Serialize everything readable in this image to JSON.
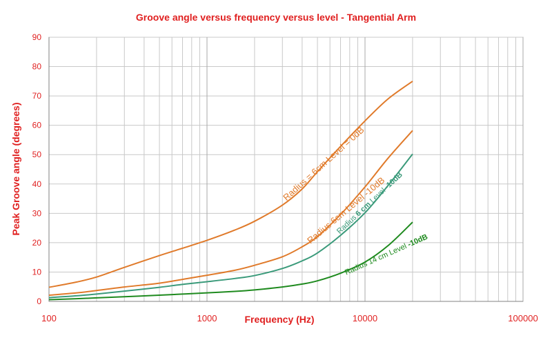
{
  "chart_data": {
    "type": "line",
    "title": "Groove angle versus frequency versus level - Tangential Arm",
    "xlabel": "Frequency (Hz)",
    "ylabel": "Peak Groove angle (degrees)",
    "xscale": "log",
    "xlim": [
      100,
      100000
    ],
    "ylim": [
      0,
      90
    ],
    "xticks": [
      "100",
      "1000",
      "10000",
      "100000"
    ],
    "yticks": [
      "0",
      "10",
      "20",
      "30",
      "40",
      "50",
      "60",
      "70",
      "80",
      "90"
    ],
    "grid": true,
    "legend": "none",
    "colors": {
      "text": "#e02020",
      "orange": "#e07a2a",
      "teal": "#3a9a7a",
      "green": "#1e8a1e",
      "grid": "#c8c8c8"
    },
    "series": [
      {
        "label_parts": [
          {
            "text": "Radius = 6cm  Level = 0dB",
            "bold": false
          }
        ],
        "color": "#e07a2a",
        "x": [
          100,
          150,
          200,
          300,
          500,
          700,
          1000,
          1500,
          2000,
          3000,
          4000,
          5000,
          7000,
          10000,
          14000,
          20000
        ],
        "y": [
          4.8,
          6.6,
          8.3,
          11.6,
          15.6,
          18.1,
          20.8,
          24.3,
          27.3,
          32.8,
          38.3,
          44.2,
          52.8,
          61.5,
          69.0,
          75.0
        ]
      },
      {
        "label_parts": [
          {
            "text": "Radius 6cm  Level -10dB",
            "bold": false
          }
        ],
        "color": "#e07a2a",
        "x": [
          100,
          150,
          200,
          300,
          500,
          700,
          1000,
          1500,
          2000,
          3000,
          4000,
          5000,
          7000,
          10000,
          14000,
          20000
        ],
        "y": [
          2.1,
          2.9,
          3.7,
          4.9,
          6.2,
          7.5,
          8.9,
          10.6,
          12.3,
          15.2,
          18.6,
          22.1,
          29.6,
          39.0,
          48.8,
          58.2
        ]
      },
      {
        "label_parts": [
          {
            "text": "Radius ",
            "bold": false
          },
          {
            "text": "6 cm",
            "bold": true
          },
          {
            "text": " Level ",
            "bold": false
          },
          {
            "text": "-10dB",
            "bold": true
          }
        ],
        "color": "#3a9a7a",
        "x": [
          100,
          150,
          200,
          300,
          500,
          700,
          1000,
          1500,
          2000,
          3000,
          4000,
          5000,
          7000,
          10000,
          14000,
          20000
        ],
        "y": [
          1.3,
          1.9,
          2.5,
          3.5,
          4.8,
          5.8,
          6.7,
          7.8,
          8.8,
          11.2,
          13.8,
          16.5,
          22.5,
          30.2,
          39.5,
          50.2
        ]
      },
      {
        "label_parts": [
          {
            "text": "Radius 14 cm  Level ",
            "bold": false
          },
          {
            "text": "-10dB",
            "bold": true
          }
        ],
        "color": "#1e8a1e",
        "x": [
          100,
          150,
          200,
          300,
          500,
          700,
          1000,
          1500,
          2000,
          3000,
          4000,
          5000,
          7000,
          10000,
          14000,
          20000
        ],
        "y": [
          0.6,
          0.9,
          1.2,
          1.6,
          2.1,
          2.5,
          2.9,
          3.4,
          3.9,
          4.9,
          5.9,
          7.0,
          9.6,
          13.4,
          19.0,
          27.0
        ]
      }
    ]
  }
}
